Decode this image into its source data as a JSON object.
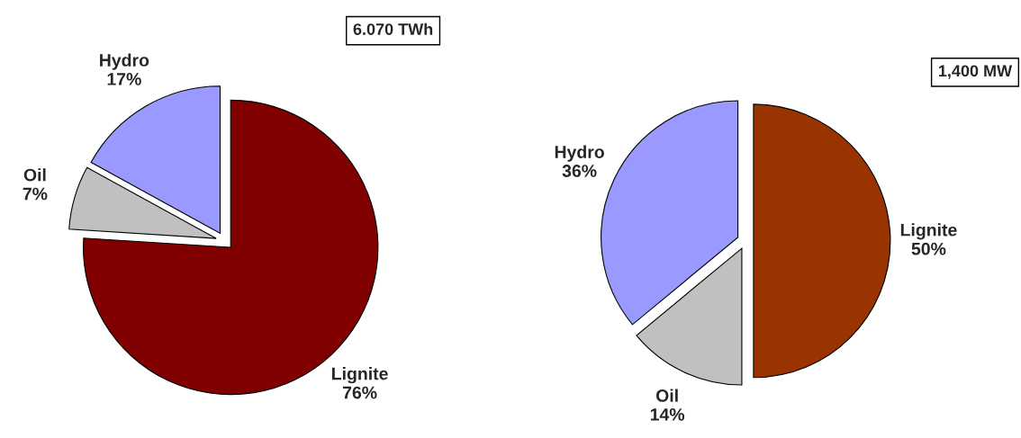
{
  "chart_data": [
    {
      "type": "pie",
      "categories": [
        "Lignite",
        "Oil",
        "Hydro"
      ],
      "values": [
        76,
        7,
        17
      ],
      "colors": [
        "#800000",
        "#c0c0c0",
        "#9999ff"
      ],
      "value_labels": [
        "76%",
        "7%",
        "17%"
      ],
      "annotations": [
        "6.070 TWh"
      ]
    },
    {
      "type": "pie",
      "categories": [
        "Lignite",
        "Oil",
        "Hydro"
      ],
      "values": [
        50,
        14,
        36
      ],
      "colors": [
        "#993300",
        "#c0c0c0",
        "#9999ff"
      ],
      "value_labels": [
        "50%",
        "14%",
        "36%"
      ],
      "annotations": [
        "1,400 MW"
      ]
    }
  ]
}
